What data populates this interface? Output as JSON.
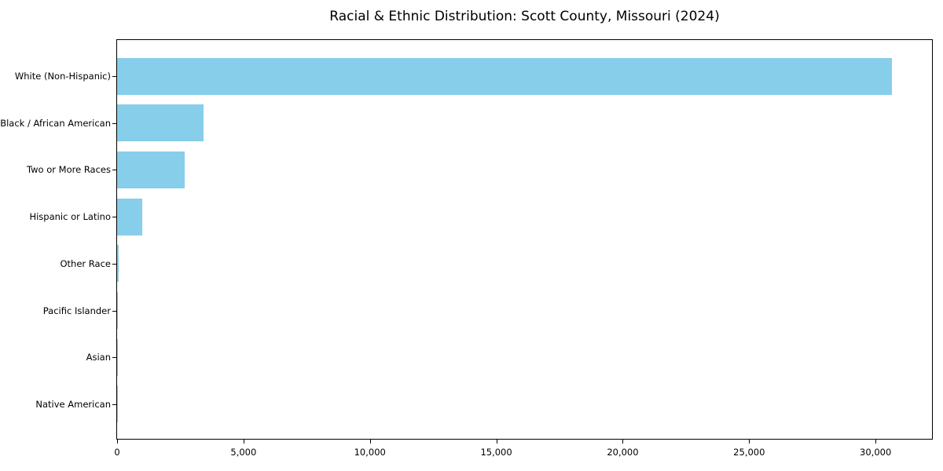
{
  "chart_data": {
    "type": "bar",
    "orientation": "horizontal",
    "title": "Racial & Ethnic Distribution: Scott County, Missouri (2024)",
    "categories": [
      "White (Non-Hispanic)",
      "Black / African American",
      "Two or More Races",
      "Hispanic or Latino",
      "Other Race",
      "Pacific Islander",
      "Asian",
      "Native American"
    ],
    "values": [
      30650,
      3430,
      2660,
      985,
      50,
      35,
      25,
      15
    ],
    "xlabel": "",
    "ylabel": "",
    "xlim": [
      0,
      32233
    ],
    "xticks": [
      0,
      5000,
      10000,
      15000,
      20000,
      25000,
      30000
    ],
    "xtick_labels": [
      "0",
      "5,000",
      "10,000",
      "15,000",
      "20,000",
      "25,000",
      "30,000"
    ],
    "bar_color": "#87CEEB",
    "axis_color": "#000000",
    "background_color": "#ffffff",
    "grid": false,
    "legend": null
  }
}
